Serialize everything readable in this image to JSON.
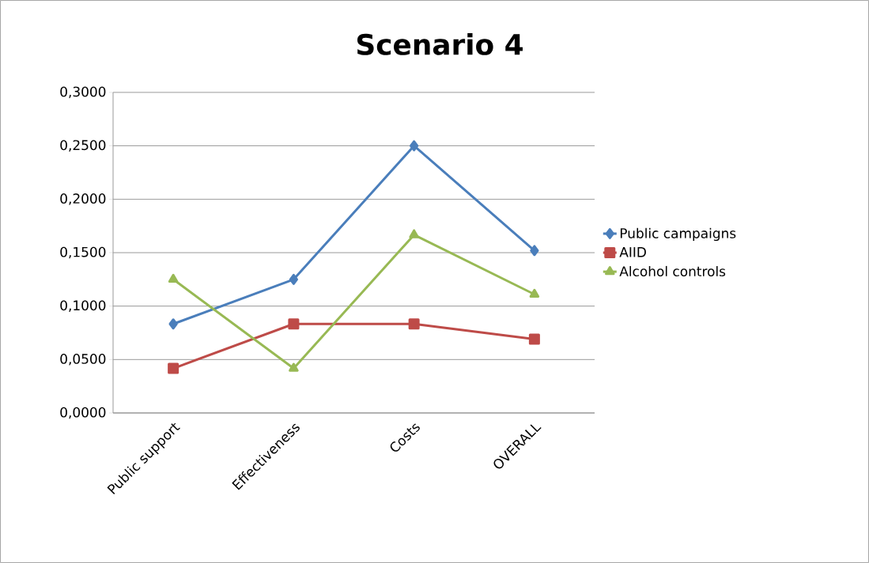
{
  "chart_data": {
    "type": "line",
    "title": "Scenario 4",
    "categories": [
      "Public support",
      "Effectiveness",
      "Costs",
      "OVERALL"
    ],
    "series": [
      {
        "name": "Public campaigns",
        "color": "#4a7ebb",
        "marker": "diamond",
        "values": [
          0.0833,
          0.125,
          0.25,
          0.152
        ]
      },
      {
        "name": "AIID",
        "color": "#be4b48",
        "marker": "square",
        "values": [
          0.0417,
          0.0833,
          0.0833,
          0.069
        ]
      },
      {
        "name": "Alcohol controls",
        "color": "#98b954",
        "marker": "triangle",
        "values": [
          0.125,
          0.0417,
          0.1667,
          0.111
        ]
      }
    ],
    "ylim": [
      0,
      0.3
    ],
    "yticks": [
      {
        "value": 0,
        "label": "0,0000"
      },
      {
        "value": 0.05,
        "label": "0,0500"
      },
      {
        "value": 0.1,
        "label": "0,1000"
      },
      {
        "value": 0.15,
        "label": "0,1500"
      },
      {
        "value": 0.2,
        "label": "0,2000"
      },
      {
        "value": 0.25,
        "label": "0,2500"
      },
      {
        "value": 0.3,
        "label": "0,3000"
      }
    ],
    "grid": "y",
    "legend": "right"
  }
}
